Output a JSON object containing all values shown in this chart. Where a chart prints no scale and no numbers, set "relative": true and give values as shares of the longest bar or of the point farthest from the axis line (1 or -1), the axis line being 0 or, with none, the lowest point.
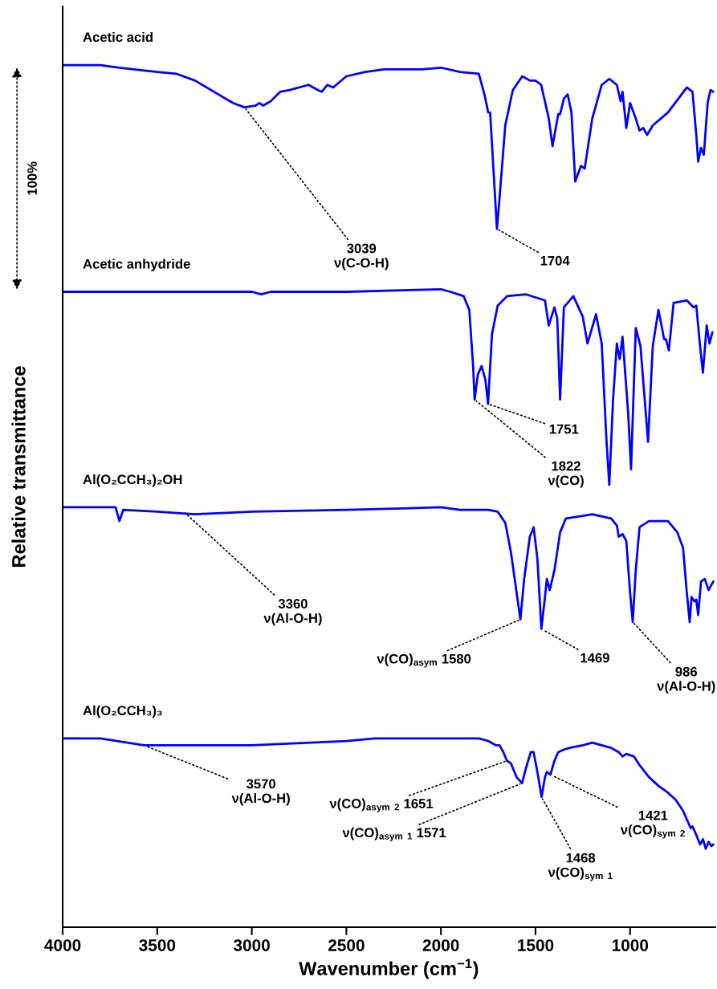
{
  "chart_data": {
    "type": "line",
    "relative": true,
    "xlabel": "Wavenumber (cm$^{−1}$)",
    "ylabel": "Relative transmittance",
    "xlim": [
      4000,
      550
    ],
    "xticks": [
      4000,
      3500,
      3000,
      2500,
      2000,
      1500,
      1000
    ],
    "grid": false,
    "legend": false,
    "marker": "none",
    "line_style": "solid",
    "series": [
      {
        "name": "Acetic acid",
        "color": "#0000ff",
        "x": [
          4000,
          3860,
          3800,
          3700,
          3500,
          3400,
          3300,
          3200,
          3100,
          3039,
          2980,
          2960,
          2940,
          2900,
          2850,
          2800,
          2700,
          2650,
          2630,
          2600,
          2570,
          2500,
          2400,
          2300,
          2100,
          2000,
          1900,
          1800,
          1770,
          1750,
          1740,
          1720,
          1704,
          1690,
          1660,
          1620,
          1570,
          1530,
          1500,
          1470,
          1430,
          1410,
          1380,
          1370,
          1350,
          1330,
          1310,
          1290,
          1260,
          1240,
          1200,
          1150,
          1110,
          1070,
          1050,
          1040,
          1020,
          1000,
          970,
          950,
          930,
          910,
          880,
          800,
          700,
          670,
          650,
          640,
          625,
          610,
          590,
          575,
          560
        ],
        "values": [
          1.0,
          1.0,
          1.0,
          0.997,
          0.992,
          0.99,
          0.982,
          0.969,
          0.956,
          0.951,
          0.953,
          0.956,
          0.953,
          0.958,
          0.969,
          0.971,
          0.977,
          0.971,
          0.969,
          0.977,
          0.974,
          0.987,
          0.992,
          0.995,
          0.995,
          0.997,
          0.992,
          0.99,
          0.966,
          0.945,
          0.945,
          0.87,
          0.81,
          0.846,
          0.93,
          0.971,
          0.987,
          0.982,
          0.982,
          0.977,
          0.938,
          0.906,
          0.943,
          0.943,
          0.961,
          0.966,
          0.945,
          0.865,
          0.883,
          0.88,
          0.938,
          0.977,
          0.984,
          0.977,
          0.958,
          0.969,
          0.927,
          0.956,
          0.938,
          0.924,
          0.927,
          0.919,
          0.93,
          0.945,
          0.974,
          0.969,
          0.919,
          0.888,
          0.904,
          0.896,
          0.956,
          0.971,
          0.969
        ]
      },
      {
        "name": "Acetic anhydride",
        "color": "#0000ff",
        "x": [
          4000,
          3000,
          2950,
          2900,
          2500,
          2000,
          1950,
          1880,
          1850,
          1830,
          1822,
          1805,
          1785,
          1765,
          1751,
          1730,
          1700,
          1650,
          1550,
          1450,
          1430,
          1400,
          1385,
          1370,
          1350,
          1300,
          1250,
          1225,
          1180,
          1150,
          1125,
          1110,
          1090,
          1070,
          1055,
          1040,
          1010,
          995,
          970,
          945,
          935,
          905,
          880,
          850,
          820,
          810,
          795,
          770,
          700,
          665,
          650,
          630,
          615,
          595,
          580,
          565
        ],
        "values": [
          0.737,
          0.737,
          0.734,
          0.737,
          0.737,
          0.74,
          0.737,
          0.732,
          0.716,
          0.651,
          0.612,
          0.641,
          0.651,
          0.635,
          0.607,
          0.688,
          0.721,
          0.732,
          0.734,
          0.727,
          0.698,
          0.719,
          0.706,
          0.612,
          0.719,
          0.732,
          0.708,
          0.677,
          0.711,
          0.677,
          0.565,
          0.513,
          0.612,
          0.677,
          0.659,
          0.685,
          0.596,
          0.531,
          0.695,
          0.674,
          0.646,
          0.563,
          0.674,
          0.716,
          0.682,
          0.682,
          0.669,
          0.724,
          0.727,
          0.719,
          0.721,
          0.674,
          0.643,
          0.698,
          0.677,
          0.69
        ]
      },
      {
        "name": "Al(O₂CCH₃)₂OH",
        "color": "#0000ff",
        "x": [
          4000,
          3720,
          3700,
          3680,
          3500,
          3300,
          3000,
          2500,
          2000,
          1900,
          1750,
          1700,
          1660,
          1630,
          1600,
          1580,
          1560,
          1530,
          1510,
          1490,
          1469,
          1450,
          1440,
          1425,
          1400,
          1370,
          1340,
          1250,
          1200,
          1100,
          1070,
          1060,
          1040,
          1020,
          1000,
          986,
          970,
          950,
          900,
          800,
          750,
          720,
          700,
          685,
          675,
          660,
          650,
          640,
          625,
          605,
          585,
          560
        ],
        "values": [
          0.487,
          0.487,
          0.471,
          0.484,
          0.482,
          0.479,
          0.482,
          0.484,
          0.487,
          0.484,
          0.484,
          0.482,
          0.469,
          0.435,
          0.388,
          0.357,
          0.404,
          0.453,
          0.464,
          0.427,
          0.346,
          0.383,
          0.404,
          0.391,
          0.414,
          0.458,
          0.474,
          0.477,
          0.479,
          0.474,
          0.466,
          0.453,
          0.456,
          0.448,
          0.388,
          0.354,
          0.414,
          0.464,
          0.471,
          0.471,
          0.458,
          0.44,
          0.388,
          0.354,
          0.383,
          0.378,
          0.38,
          0.362,
          0.401,
          0.404,
          0.391,
          0.401
        ]
      },
      {
        "name": "Al(O₂CCH₃)₃",
        "color": "#0000ff",
        "x": [
          4000,
          3800,
          3570,
          3400,
          3000,
          2500,
          2350,
          2000,
          1900,
          1800,
          1750,
          1710,
          1690,
          1670,
          1651,
          1630,
          1600,
          1571,
          1550,
          1525,
          1510,
          1490,
          1468,
          1450,
          1440,
          1421,
          1400,
          1380,
          1350,
          1320,
          1250,
          1200,
          1100,
          1060,
          1040,
          1020,
          980,
          950,
          900,
          850,
          800,
          760,
          720,
          700,
          680,
          670,
          650,
          630,
          615,
          600,
          585,
          570,
          560
        ],
        "values": [
          0.219,
          0.219,
          0.211,
          0.211,
          0.211,
          0.216,
          0.219,
          0.219,
          0.219,
          0.219,
          0.216,
          0.211,
          0.211,
          0.203,
          0.193,
          0.19,
          0.174,
          0.167,
          0.185,
          0.203,
          0.203,
          0.18,
          0.151,
          0.174,
          0.18,
          0.177,
          0.193,
          0.203,
          0.206,
          0.208,
          0.211,
          0.214,
          0.208,
          0.203,
          0.198,
          0.201,
          0.198,
          0.188,
          0.174,
          0.164,
          0.156,
          0.148,
          0.135,
          0.125,
          0.115,
          0.117,
          0.107,
          0.096,
          0.102,
          0.091,
          0.099,
          0.094,
          0.096
        ]
      }
    ],
    "annotations": [
      "100%",
      {
        "text": "3039\nν(C-O-H)",
        "x": 3039,
        "y": 0.951
      },
      {
        "text": "1704",
        "x": 1704,
        "y": 0.81
      },
      {
        "text": "1751",
        "x": 1751,
        "y": 0.607
      },
      {
        "text": "1822\nν(CO)",
        "x": 1822,
        "y": 0.612
      },
      {
        "text": "3360\nν(Al-O-H)",
        "x": 3360,
        "y": 0.482
      },
      {
        "text": "ν(CO)$_{asym}$ 1580",
        "x": 1580,
        "y": 0.357
      },
      {
        "text": "1469",
        "x": 1469,
        "y": 0.346
      },
      {
        "text": "986\nν(Al-O-H)",
        "x": 986,
        "y": 0.354
      },
      {
        "text": "3570\nν(Al-O-H)",
        "x": 3570,
        "y": 0.211
      },
      {
        "text": "ν(CO)$_{asym}$ $_{2}$ 1651",
        "x": 1651,
        "y": 0.193
      },
      {
        "text": "ν(CO)$_{asym}$ $_{1}$ 1571",
        "x": 1571,
        "y": 0.167
      },
      {
        "text": "1468\nν(CO)$_{sym}$ $_{1}$",
        "x": 1468,
        "y": 0.151
      },
      {
        "text": "1421\nν(CO)$_{sym}$ $_{2}$",
        "x": 1421,
        "y": 0.177
      }
    ]
  }
}
